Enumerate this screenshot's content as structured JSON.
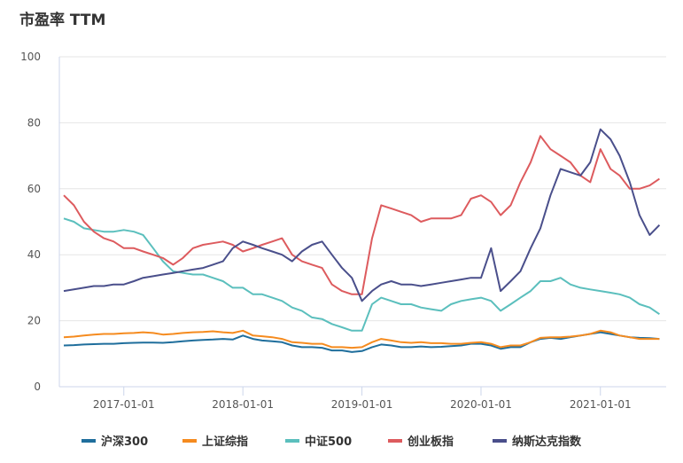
{
  "chart_data": {
    "type": "line",
    "title": "市盈率 TTM",
    "xlabel": "",
    "ylabel": "",
    "ylim": [
      0,
      100
    ],
    "yticks": [
      0,
      20,
      40,
      60,
      80,
      100
    ],
    "xticks": [
      "2017-01-01",
      "2018-01-01",
      "2019-01-01",
      "2020-01-01",
      "2021-01-01"
    ],
    "grid": "horizontal",
    "legend": "bottom",
    "x_start": "2016-07",
    "x_end": "2021-07",
    "x_step": "monthly",
    "series": [
      {
        "name": "沪深300",
        "color": "#1f6e9c",
        "values": [
          12.5,
          12.6,
          12.8,
          12.9,
          13,
          13,
          13.2,
          13.3,
          13.4,
          13.4,
          13.3,
          13.5,
          13.8,
          14,
          14.2,
          14.3,
          14.5,
          14.3,
          15.5,
          14.5,
          14,
          13.8,
          13.5,
          12.5,
          12,
          12,
          11.8,
          11,
          11,
          10.5,
          10.8,
          12,
          12.8,
          12.5,
          12,
          12,
          12.2,
          12,
          12.1,
          12.3,
          12.5,
          13,
          13,
          12.5,
          11.5,
          12,
          12,
          13.5,
          14.5,
          14.8,
          14.5,
          15,
          15.5,
          16,
          16.5,
          16,
          15.5,
          15,
          14.8,
          14.7,
          14.5
        ]
      },
      {
        "name": "上证综指",
        "color": "#f58b1f",
        "values": [
          15,
          15.2,
          15.5,
          15.8,
          16,
          16,
          16.2,
          16.3,
          16.5,
          16.3,
          15.8,
          16,
          16.3,
          16.5,
          16.6,
          16.8,
          16.5,
          16.3,
          17,
          15.5,
          15.3,
          15,
          14.5,
          13.5,
          13.3,
          13,
          13,
          12,
          12,
          11.8,
          12,
          13.5,
          14.5,
          14,
          13.5,
          13.3,
          13.5,
          13.2,
          13.2,
          13,
          13,
          13.3,
          13.5,
          13,
          12,
          12.5,
          12.5,
          13.5,
          14.8,
          15,
          15,
          15.2,
          15.5,
          16,
          17,
          16.5,
          15.5,
          15,
          14.5,
          14.5,
          14.5
        ]
      },
      {
        "name": "中证500",
        "color": "#5bbfbd",
        "values": [
          51,
          50,
          48,
          47.5,
          47,
          47,
          47.5,
          47,
          46,
          42,
          38,
          35,
          34.5,
          34,
          34,
          33,
          32,
          30,
          30,
          28,
          28,
          27,
          26,
          24,
          23,
          21,
          20.5,
          19,
          18,
          17,
          17,
          25,
          27,
          26,
          25,
          25,
          24,
          23.5,
          23,
          25,
          26,
          26.5,
          27,
          26,
          23,
          25,
          27,
          29,
          32,
          32,
          33,
          31,
          30,
          29.5,
          29,
          28.5,
          28,
          27,
          25,
          24,
          22
        ]
      },
      {
        "name": "创业板指",
        "color": "#dd5b5e",
        "values": [
          58,
          55,
          50,
          47,
          45,
          44,
          42,
          42,
          41,
          40,
          39,
          37,
          39,
          42,
          43,
          43.5,
          44,
          43,
          41,
          42,
          43,
          44,
          45,
          40,
          38,
          37,
          36,
          31,
          29,
          28,
          28,
          45,
          55,
          54,
          53,
          52,
          50,
          51,
          51,
          51,
          52,
          57,
          58,
          56,
          52,
          55,
          62,
          68,
          76,
          72,
          70,
          68,
          64,
          62,
          72,
          66,
          64,
          60,
          60,
          61,
          63
        ]
      },
      {
        "name": "纳斯达克指数",
        "color": "#4a4f8b",
        "values": [
          29,
          29.5,
          30,
          30.5,
          30.5,
          31,
          31,
          32,
          33,
          33.5,
          34,
          34.5,
          35,
          35.5,
          36,
          37,
          38,
          42,
          44,
          43,
          42,
          41,
          40,
          38,
          41,
          43,
          44,
          40,
          36,
          33,
          26,
          29,
          31,
          32,
          31,
          31,
          30.5,
          31,
          31.5,
          32,
          32.5,
          33,
          33,
          42,
          29,
          32,
          35,
          42,
          48,
          58,
          66,
          65,
          64,
          68,
          78,
          75,
          70,
          62,
          52,
          46,
          49
        ]
      }
    ]
  }
}
